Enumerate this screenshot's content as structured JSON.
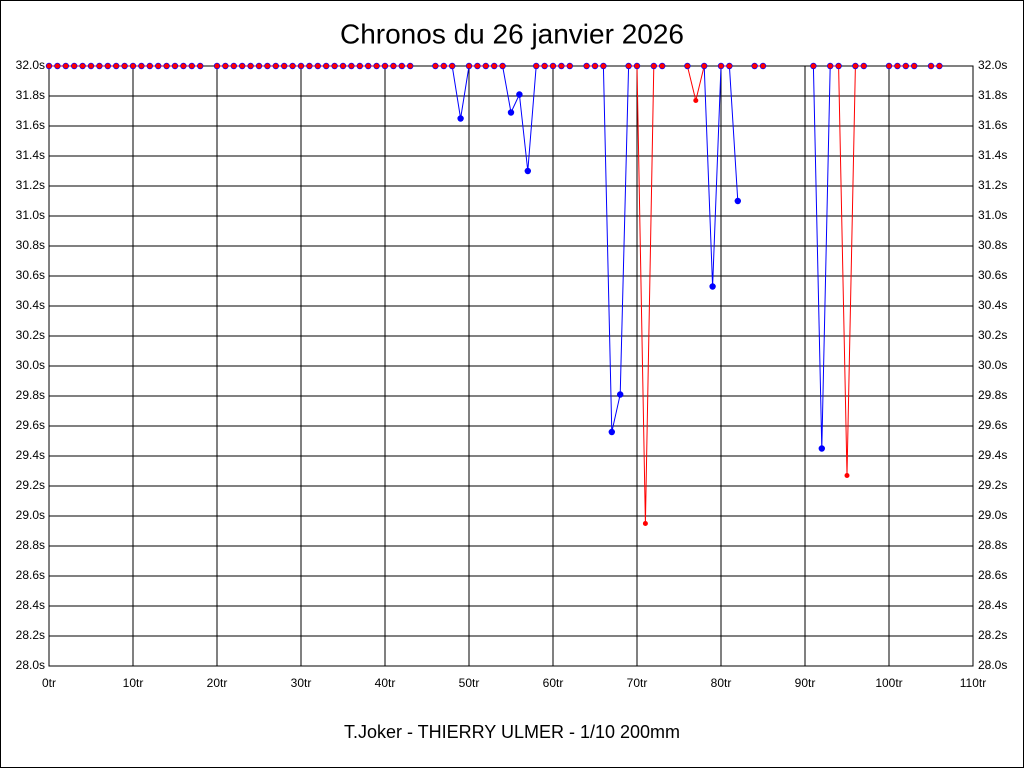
{
  "chart_data": {
    "type": "line",
    "title": "Chronos du 26 janvier 2026",
    "subtitle": "T.Joker - THIERRY ULMER - 1/10 200mm",
    "x": [
      0,
      1,
      2,
      3,
      4,
      5,
      6,
      7,
      8,
      9,
      10,
      11,
      12,
      13,
      14,
      15,
      16,
      17,
      18,
      19,
      20,
      21,
      22,
      23,
      24,
      25,
      26,
      27,
      28,
      29,
      30,
      31,
      32,
      33,
      34,
      35,
      36,
      37,
      38,
      39,
      40,
      41,
      42,
      43,
      44,
      45,
      46,
      47,
      48,
      49,
      50,
      51,
      52,
      53,
      54,
      55,
      56,
      57,
      58,
      59,
      60,
      61,
      62,
      63,
      64,
      65,
      66,
      67,
      68,
      69,
      70,
      71,
      72,
      73,
      74,
      75,
      76,
      77,
      78,
      79,
      80,
      81,
      82,
      83,
      84,
      85,
      86,
      87,
      88,
      89,
      90,
      91,
      92,
      93,
      94,
      95,
      96,
      97,
      98,
      99,
      100,
      101,
      102,
      103,
      104,
      105,
      106
    ],
    "series": [
      {
        "color": "#0000ff",
        "values": [
          32.0,
          32.0,
          32.0,
          32.0,
          32.0,
          32.0,
          32.0,
          32.0,
          32.0,
          32.0,
          32.0,
          32.0,
          32.0,
          32.0,
          32.0,
          32.0,
          32.0,
          32.0,
          32.0,
          null,
          32.0,
          32.0,
          32.0,
          32.0,
          32.0,
          32.0,
          32.0,
          32.0,
          32.0,
          32.0,
          32.0,
          32.0,
          32.0,
          32.0,
          32.0,
          32.0,
          32.0,
          32.0,
          32.0,
          32.0,
          32.0,
          32.0,
          32.0,
          32.0,
          null,
          null,
          32.0,
          32.0,
          32.0,
          31.65,
          32.0,
          32.0,
          32.0,
          32.0,
          32.0,
          31.69,
          31.81,
          31.3,
          32.0,
          32.0,
          32.0,
          32.0,
          32.0,
          null,
          32.0,
          32.0,
          32.0,
          29.56,
          29.81,
          32.0,
          32.0,
          null,
          32.0,
          32.0,
          null,
          null,
          32.0,
          null,
          32.0,
          30.53,
          32.0,
          32.0,
          31.1,
          null,
          32.0,
          32.0,
          null,
          null,
          null,
          null,
          null,
          32.0,
          29.45,
          32.0,
          32.0,
          null,
          32.0,
          32.0,
          null,
          null,
          32.0,
          32.0,
          32.0,
          32.0,
          null,
          32.0,
          32.0
        ]
      },
      {
        "color": "#ff0000",
        "values": [
          32.0,
          32.0,
          32.0,
          32.0,
          32.0,
          32.0,
          32.0,
          32.0,
          32.0,
          32.0,
          32.0,
          32.0,
          32.0,
          32.0,
          32.0,
          32.0,
          32.0,
          32.0,
          32.0,
          null,
          32.0,
          32.0,
          32.0,
          32.0,
          32.0,
          32.0,
          32.0,
          32.0,
          32.0,
          32.0,
          32.0,
          32.0,
          32.0,
          32.0,
          32.0,
          32.0,
          32.0,
          32.0,
          32.0,
          32.0,
          32.0,
          32.0,
          32.0,
          32.0,
          null,
          null,
          32.0,
          32.0,
          32.0,
          null,
          32.0,
          32.0,
          32.0,
          32.0,
          32.0,
          null,
          null,
          null,
          32.0,
          32.0,
          32.0,
          32.0,
          32.0,
          null,
          32.0,
          32.0,
          32.0,
          null,
          null,
          32.0,
          32.0,
          28.95,
          32.0,
          32.0,
          null,
          null,
          32.0,
          31.77,
          32.0,
          null,
          32.0,
          32.0,
          null,
          null,
          32.0,
          32.0,
          null,
          null,
          null,
          null,
          null,
          32.0,
          null,
          32.0,
          32.0,
          29.27,
          32.0,
          32.0,
          null,
          null,
          32.0,
          32.0,
          32.0,
          32.0,
          null,
          32.0,
          32.0
        ]
      }
    ],
    "xlim": [
      0,
      110
    ],
    "xticks": [
      {
        "value": 0,
        "label": "0tr"
      },
      {
        "value": 10,
        "label": "10tr"
      },
      {
        "value": 20,
        "label": "20tr"
      },
      {
        "value": 30,
        "label": "30tr"
      },
      {
        "value": 40,
        "label": "40tr"
      },
      {
        "value": 50,
        "label": "50tr"
      },
      {
        "value": 60,
        "label": "60tr"
      },
      {
        "value": 70,
        "label": "70tr"
      },
      {
        "value": 80,
        "label": "80tr"
      },
      {
        "value": 90,
        "label": "90tr"
      },
      {
        "value": 100,
        "label": "100tr"
      },
      {
        "value": 110,
        "label": "110tr"
      }
    ],
    "ylim": [
      28.0,
      32.0
    ],
    "yticks": [
      {
        "value": 28.0,
        "label": "28.0s"
      },
      {
        "value": 28.2,
        "label": "28.2s"
      },
      {
        "value": 28.4,
        "label": "28.4s"
      },
      {
        "value": 28.6,
        "label": "28.6s"
      },
      {
        "value": 28.8,
        "label": "28.8s"
      },
      {
        "value": 29.0,
        "label": "29.0s"
      },
      {
        "value": 29.2,
        "label": "29.2s"
      },
      {
        "value": 29.4,
        "label": "29.4s"
      },
      {
        "value": 29.6,
        "label": "29.6s"
      },
      {
        "value": 29.8,
        "label": "29.8s"
      },
      {
        "value": 30.0,
        "label": "30.0s"
      },
      {
        "value": 30.2,
        "label": "30.2s"
      },
      {
        "value": 30.4,
        "label": "30.4s"
      },
      {
        "value": 30.6,
        "label": "30.6s"
      },
      {
        "value": 30.8,
        "label": "30.8s"
      },
      {
        "value": 31.0,
        "label": "31.0s"
      },
      {
        "value": 31.2,
        "label": "31.2s"
      },
      {
        "value": 31.4,
        "label": "31.4s"
      },
      {
        "value": 31.6,
        "label": "31.6s"
      },
      {
        "value": 31.8,
        "label": "31.8s"
      },
      {
        "value": 32.0,
        "label": "32.0s"
      }
    ],
    "grid": true
  }
}
